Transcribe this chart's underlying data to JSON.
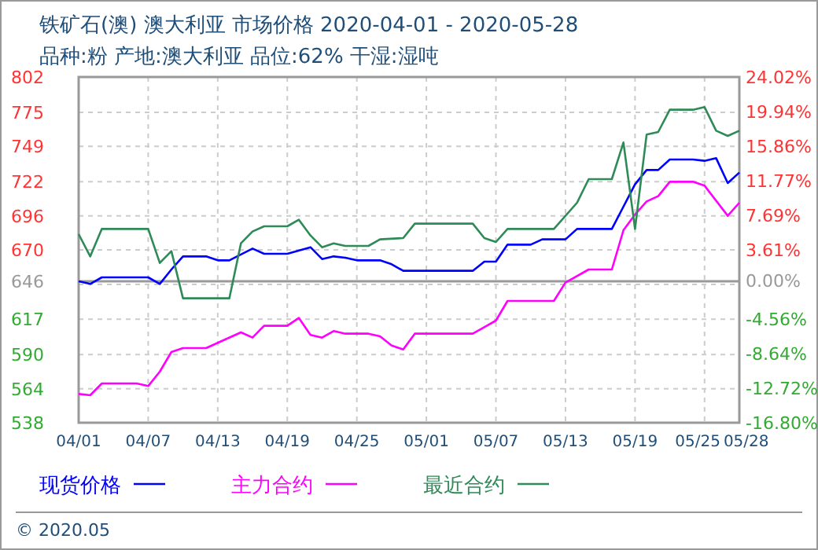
{
  "chart_data": {
    "type": "line",
    "title": "铁矿石(澳) 澳大利亚 市场价格 2020-04-01 - 2020-05-28",
    "subtitle": "品种:粉 产地:澳大利亚 品位:62% 干湿:湿吨",
    "annotations": [
      "© 2020.05"
    ],
    "legend": "bottom",
    "grid": true,
    "line_style": "solid",
    "xlim": [
      "2020-04-01",
      "2020-05-28"
    ],
    "xticks": [
      {
        "value": "2020-04-01",
        "label": "04/01"
      },
      {
        "value": "2020-04-07",
        "label": "04/07"
      },
      {
        "value": "2020-04-13",
        "label": "04/13"
      },
      {
        "value": "2020-04-19",
        "label": "04/19"
      },
      {
        "value": "2020-04-25",
        "label": "04/25"
      },
      {
        "value": "2020-05-01",
        "label": "05/01"
      },
      {
        "value": "2020-05-07",
        "label": "05/07"
      },
      {
        "value": "2020-05-13",
        "label": "05/13"
      },
      {
        "value": "2020-05-19",
        "label": "05/19"
      },
      {
        "value": "2020-05-25",
        "label": "05/25"
      },
      {
        "value": "2020-05-28",
        "label": "05/28"
      }
    ],
    "ylim": [
      538,
      802
    ],
    "yticks": [
      802,
      775,
      749,
      722,
      696,
      670,
      646,
      {
        "value": 643.6,
        "label": null
      },
      617,
      590,
      564,
      538
    ],
    "y2lim": [
      -16.8,
      24.02
    ],
    "y2ticks": [
      {
        "value": 24.02,
        "label": "24.02%"
      },
      {
        "value": 19.94,
        "label": "19.94%"
      },
      {
        "value": 15.86,
        "label": "15.86%"
      },
      {
        "value": 11.77,
        "label": "11.77%"
      },
      {
        "value": 7.69,
        "label": "7.69%"
      },
      {
        "value": 3.61,
        "label": "3.61%"
      },
      {
        "value": 0,
        "label": "0.00%"
      },
      {
        "value": -4.56,
        "label": "-4.56%"
      },
      {
        "value": -8.64,
        "label": "-8.64%"
      },
      {
        "value": -12.72,
        "label": "-12.72%"
      },
      {
        "value": -16.8,
        "label": "-16.80%"
      }
    ],
    "ref_lines": [
      {
        "axis": "y",
        "value": 646,
        "color": "#999999"
      }
    ],
    "series": [
      {
        "name": "现货价格",
        "color": "#0000ff",
        "x": [
          "2020-04-01",
          "2020-04-02",
          "2020-04-03",
          "2020-04-07",
          "2020-04-08",
          "2020-04-09",
          "2020-04-10",
          "2020-04-12",
          "2020-04-13",
          "2020-04-14",
          "2020-04-16",
          "2020-04-17",
          "2020-04-19",
          "2020-04-21",
          "2020-04-22",
          "2020-04-23",
          "2020-04-24",
          "2020-04-25",
          "2020-04-27",
          "2020-04-28",
          "2020-04-29",
          "2020-05-05",
          "2020-05-06",
          "2020-05-07",
          "2020-05-08",
          "2020-05-10",
          "2020-05-11",
          "2020-05-13",
          "2020-05-14",
          "2020-05-17",
          "2020-05-18",
          "2020-05-19",
          "2020-05-20",
          "2020-05-21",
          "2020-05-22",
          "2020-05-24",
          "2020-05-25",
          "2020-05-26",
          "2020-05-27",
          "2020-05-28"
        ],
        "values": [
          646,
          644,
          649,
          649,
          644,
          655,
          665,
          665,
          662,
          662,
          671,
          667,
          667,
          672,
          663,
          665,
          664,
          662,
          662,
          659,
          654,
          654,
          661,
          661,
          674,
          674,
          678,
          678,
          686,
          686,
          703,
          720,
          731,
          731,
          739,
          739,
          738,
          740,
          721,
          729
        ]
      },
      {
        "name": "主力合约",
        "color": "#ff00ff",
        "x": [
          "2020-04-01",
          "2020-04-02",
          "2020-04-03",
          "2020-04-06",
          "2020-04-07",
          "2020-04-08",
          "2020-04-09",
          "2020-04-10",
          "2020-04-12",
          "2020-04-15",
          "2020-04-16",
          "2020-04-17",
          "2020-04-19",
          "2020-04-20",
          "2020-04-21",
          "2020-04-22",
          "2020-04-23",
          "2020-04-24",
          "2020-04-26",
          "2020-04-27",
          "2020-04-28",
          "2020-04-29",
          "2020-04-30",
          "2020-05-05",
          "2020-05-06",
          "2020-05-07",
          "2020-05-08",
          "2020-05-12",
          "2020-05-13",
          "2020-05-15",
          "2020-05-17",
          "2020-05-18",
          "2020-05-19",
          "2020-05-20",
          "2020-05-21",
          "2020-05-22",
          "2020-05-24",
          "2020-05-25",
          "2020-05-27",
          "2020-05-28"
        ],
        "values": [
          560,
          559,
          568,
          568,
          566,
          577,
          592,
          595,
          595,
          607,
          603,
          612,
          612,
          618,
          605,
          603,
          608,
          606,
          606,
          604,
          597,
          594,
          606,
          606,
          611,
          616,
          631,
          631,
          645,
          655,
          655,
          685,
          697,
          707,
          711,
          722,
          722,
          719,
          696,
          706
        ]
      },
      {
        "name": "最近合约",
        "color": "#2e8b57",
        "x": [
          "2020-04-01",
          "2020-04-02",
          "2020-04-03",
          "2020-04-07",
          "2020-04-08",
          "2020-04-09",
          "2020-04-10",
          "2020-04-14",
          "2020-04-15",
          "2020-04-16",
          "2020-04-17",
          "2020-04-19",
          "2020-04-20",
          "2020-04-21",
          "2020-04-22",
          "2020-04-23",
          "2020-04-24",
          "2020-04-26",
          "2020-04-27",
          "2020-04-29",
          "2020-04-30",
          "2020-05-05",
          "2020-05-06",
          "2020-05-07",
          "2020-05-08",
          "2020-05-12",
          "2020-05-14",
          "2020-05-15",
          "2020-05-17",
          "2020-05-18",
          "2020-05-19",
          "2020-05-20",
          "2020-05-21",
          "2020-05-22",
          "2020-05-24",
          "2020-05-25",
          "2020-05-26",
          "2020-05-27",
          "2020-05-28"
        ],
        "values": [
          682,
          665,
          686,
          686,
          660,
          669,
          633,
          633,
          675,
          684,
          688,
          688,
          693,
          681,
          672,
          675,
          673,
          673,
          678,
          679,
          690,
          690,
          679,
          676,
          686,
          686,
          706,
          724,
          724,
          752,
          686,
          758,
          760,
          777,
          777,
          779,
          761,
          757,
          761
        ]
      }
    ]
  }
}
